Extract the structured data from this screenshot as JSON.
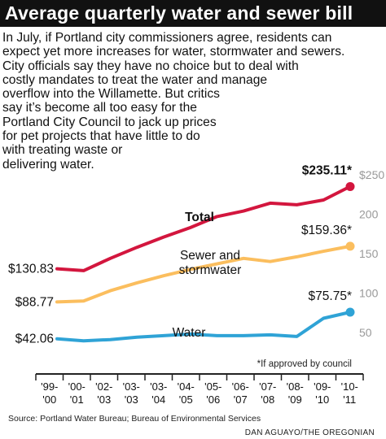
{
  "title": "Average quarterly water and sewer bill",
  "intro_lines": [
    "In July, if Portland city commissioners agree, residents can",
    "expect yet more increases for water, stormwater and sewers.",
    "City officials say they have no choice but to deal with",
    "costly mandates to treat the water and manage",
    "overflow into the Willamette. But critics",
    "say it’s become all too easy for the",
    "Portland City Council to jack up prices",
    "for pet projects that have little to do",
    "with treating waste or",
    "delivering water."
  ],
  "footnote": "*If approved by council",
  "source": "Source: Portland Water Bureau; Bureau of Environmental Services",
  "credit": "DAN AGUAYO/THE OREGONIAN",
  "chart_data": {
    "type": "line",
    "title": "Average quarterly water and sewer bill",
    "categories": [
      [
        "'99-",
        "'00"
      ],
      [
        "'00-",
        "'01"
      ],
      [
        "'02-",
        "'03"
      ],
      [
        "'03-",
        "'03"
      ],
      [
        "'03-",
        "'04"
      ],
      [
        "'04-",
        "'05"
      ],
      [
        "'05-",
        "'06"
      ],
      [
        "'06-",
        "'07"
      ],
      [
        "'07-",
        "'08"
      ],
      [
        "'08-",
        "'09"
      ],
      [
        "'09-",
        "'10"
      ],
      [
        "'10-",
        "'11"
      ]
    ],
    "ylim": [
      0,
      250
    ],
    "yticks": [
      50,
      100,
      150,
      200,
      250
    ],
    "ytick_labels": [
      "50",
      "100",
      "150",
      "200",
      "$250"
    ],
    "colors": {
      "Total": "#d3163e",
      "Sewer and stormwater": "#fbbe5e",
      "Water": "#2fa3d6",
      "axis": "#222222",
      "ticklabel": "#999999"
    },
    "series": [
      {
        "name": "Total",
        "values": [
          130.83,
          128.5,
          144,
          158,
          171,
          183,
          197,
          204,
          214,
          212,
          218,
          235.11
        ],
        "start_label": "$130.83",
        "end_label": "$235.11*"
      },
      {
        "name": "Sewer and stormwater",
        "values": [
          88.77,
          90,
          103,
          113,
          122,
          130,
          137,
          144,
          140,
          146,
          153,
          159.36
        ],
        "start_label": "$88.77",
        "end_label": "$159.36*"
      },
      {
        "name": "Water",
        "values": [
          42.06,
          39.5,
          41,
          44,
          46,
          48,
          46,
          46,
          47,
          45,
          68,
          75.75
        ],
        "start_label": "$42.06",
        "end_label": "$75.75*"
      }
    ]
  }
}
